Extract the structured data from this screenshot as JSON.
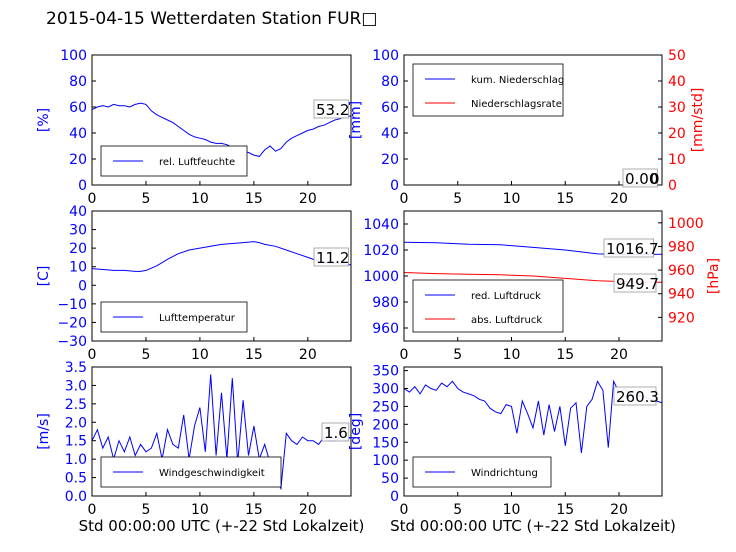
{
  "title": "2015-04-15 Wetterdaten Station FUR□",
  "colors": {
    "blue": "#0000ff",
    "red": "#ff0000",
    "black": "#000000"
  },
  "chart_data": [
    {
      "type": "line",
      "id": "humidity",
      "ylabel": "[%]",
      "xlim": [
        0,
        24
      ],
      "ylim": [
        0,
        100
      ],
      "xticks": [
        "0",
        "5",
        "10",
        "15",
        "20"
      ],
      "yticks": [
        "0",
        "20",
        "40",
        "60",
        "80",
        "100"
      ],
      "legend": [
        "rel. Luftfeuchte"
      ],
      "legend_loc": "lower-left",
      "current_value": "53.2",
      "series": [
        {
          "name": "rel. Luftfeuchte",
          "color": "#0000ff",
          "x": [
            0,
            0.5,
            1,
            1.5,
            2,
            2.5,
            3,
            3.5,
            4,
            4.5,
            5,
            5.5,
            6,
            6.5,
            7,
            7.5,
            8,
            8.5,
            9,
            9.5,
            10,
            10.5,
            11,
            11.5,
            12,
            12.5,
            13,
            13.5,
            14,
            14.5,
            15,
            15.5,
            16,
            16.5,
            17,
            17.5,
            18,
            18.5,
            19,
            19.5,
            20,
            20.5,
            21,
            21.5,
            22,
            22.5,
            23,
            23.5,
            24
          ],
          "y": [
            58,
            60,
            61,
            60,
            62,
            61,
            61,
            60,
            62,
            63,
            62,
            57,
            54,
            52,
            50,
            48,
            45,
            42,
            39,
            37,
            36,
            35,
            33,
            32,
            32,
            31,
            29,
            27,
            26,
            25,
            23,
            22,
            27,
            30,
            26,
            28,
            33,
            36,
            38,
            40,
            42,
            43,
            45,
            46,
            48,
            50,
            51,
            53,
            53
          ]
        }
      ]
    },
    {
      "type": "line",
      "id": "precip",
      "ylabel": "[mm]",
      "y2label": "[mm/std]",
      "xlim": [
        0,
        24
      ],
      "ylim": [
        0,
        100
      ],
      "y2lim": [
        0,
        50
      ],
      "xticks": [
        "0",
        "5",
        "10",
        "15",
        "20"
      ],
      "yticks": [
        "0",
        "20",
        "40",
        "60",
        "80",
        "100"
      ],
      "y2ticks": [
        "0",
        "10",
        "20",
        "30",
        "40",
        "50"
      ],
      "legend": [
        "kum. Niederschlag",
        "Niederschlagsrate"
      ],
      "legend_loc": "top-left",
      "current_value": "0.00",
      "current_value_overlap": "0",
      "series": [
        {
          "name": "kum. Niederschlag",
          "color": "#0000ff",
          "x": [
            0,
            24
          ],
          "y": [
            0,
            0
          ]
        },
        {
          "name": "Niederschlagsrate",
          "color": "#ff0000",
          "axis": "right",
          "x": [
            0,
            24
          ],
          "y": [
            0,
            0
          ]
        }
      ]
    },
    {
      "type": "line",
      "id": "temperature",
      "ylabel": "[C]",
      "xlim": [
        0,
        24
      ],
      "ylim": [
        -30,
        40
      ],
      "xticks": [
        "0",
        "5",
        "10",
        "15",
        "20"
      ],
      "yticks": [
        "−30",
        "−20",
        "−10",
        "0",
        "10",
        "20",
        "30",
        "40"
      ],
      "legend": [
        "Lufttemperatur"
      ],
      "legend_loc": "lower-left",
      "current_value": "11.2",
      "series": [
        {
          "name": "Lufttemperatur",
          "color": "#0000ff",
          "x": [
            0,
            1,
            2,
            3,
            4,
            4.5,
            5,
            6,
            7,
            8,
            9,
            10,
            11,
            12,
            13,
            14,
            15,
            15.5,
            16,
            17,
            18,
            19,
            20,
            21,
            22,
            23,
            24
          ],
          "y": [
            9,
            8.5,
            8,
            8,
            7.5,
            7.5,
            8,
            10.5,
            14,
            17,
            19,
            20,
            21,
            22,
            22.5,
            23,
            23.5,
            23,
            22,
            21,
            19,
            17,
            15,
            13,
            12,
            11.5,
            11
          ]
        }
      ]
    },
    {
      "type": "line",
      "id": "pressure",
      "ylabel": "[hPa]",
      "xlim": [
        0,
        24
      ],
      "ylim": [
        950,
        1050
      ],
      "y2lim": [
        900,
        1010
      ],
      "xticks": [
        "0",
        "5",
        "10",
        "15",
        "20"
      ],
      "yticks": [
        "960",
        "980",
        "1000",
        "1020",
        "1040"
      ],
      "y2ticks": [
        "920",
        "940",
        "960",
        "980",
        "1000"
      ],
      "legend": [
        "red. Luftdruck",
        "abs. Luftdruck"
      ],
      "legend_loc": "lower-left",
      "value_1": "1016.7",
      "value_2": "949.7",
      "series": [
        {
          "name": "red. Luftdruck",
          "color": "#0000ff",
          "x": [
            0,
            3,
            6,
            9,
            12,
            15,
            18,
            21,
            24
          ],
          "y": [
            1026,
            1025.5,
            1024.5,
            1024,
            1022,
            1020,
            1017,
            1016.5,
            1016.7
          ]
        },
        {
          "name": "abs. Luftdruck",
          "color": "#ff0000",
          "axis": "right",
          "x": [
            0,
            3,
            6,
            9,
            12,
            15,
            18,
            21,
            24
          ],
          "y": [
            958,
            957,
            956.5,
            956,
            955,
            953,
            951,
            950,
            949.7
          ]
        }
      ]
    },
    {
      "type": "line",
      "id": "wind-speed",
      "ylabel": "[m/s]",
      "xlabel": "Std 00:00:00 UTC (+-22 Std Lokalzeit)",
      "xlim": [
        0,
        24
      ],
      "ylim": [
        0,
        3.5
      ],
      "xticks": [
        "0",
        "5",
        "10",
        "15",
        "20"
      ],
      "yticks": [
        "0.0",
        "0.5",
        "1.0",
        "1.5",
        "2.0",
        "2.5",
        "3.0",
        "3.5"
      ],
      "legend": [
        "Windgeschwindigkeit"
      ],
      "legend_loc": "lower-left",
      "current_value": "1.6",
      "series": [
        {
          "name": "Windgeschwindigkeit",
          "color": "#0000ff",
          "x": [
            0,
            0.5,
            1,
            1.5,
            2,
            2.5,
            3,
            3.5,
            4,
            4.5,
            5,
            5.5,
            6,
            6.5,
            7,
            7.5,
            8,
            8.5,
            9,
            9.5,
            10,
            10.5,
            11,
            11.5,
            12,
            12.5,
            13,
            13.5,
            14,
            14.5,
            15,
            15.5,
            16,
            16.5,
            17,
            17.5,
            18,
            18.5,
            19,
            19.5,
            20,
            20.5,
            21,
            21.5,
            22,
            22.5,
            23,
            23.5,
            24
          ],
          "y": [
            1.5,
            1.8,
            1.3,
            1.6,
            1.0,
            1.5,
            1.2,
            1.6,
            1.1,
            1.4,
            1.2,
            1.3,
            1.7,
            1.0,
            1.8,
            1.4,
            1.3,
            2.2,
            1.0,
            1.9,
            2.4,
            1.2,
            3.3,
            1.1,
            2.8,
            1.0,
            3.2,
            0.9,
            2.6,
            1.1,
            1.9,
            1.0,
            1.4,
            0.9,
            0.5,
            0.2,
            1.7,
            1.5,
            1.4,
            1.6,
            1.5,
            1.5,
            1.4,
            1.6,
            1.5,
            1.5,
            1.6,
            1.5,
            1.6
          ]
        }
      ]
    },
    {
      "type": "line",
      "id": "wind-direction",
      "ylabel": "[deg]",
      "xlabel": "Std 00:00:00 UTC (+-22 Std Lokalzeit)",
      "xlim": [
        0,
        24
      ],
      "ylim": [
        0,
        360
      ],
      "xticks": [
        "0",
        "5",
        "10",
        "15",
        "20"
      ],
      "yticks": [
        "0",
        "50",
        "100",
        "150",
        "200",
        "250",
        "300",
        "350"
      ],
      "legend": [
        "Windrichtung"
      ],
      "legend_loc": "lower-left",
      "current_value": "260.3",
      "series": [
        {
          "name": "Windrichtung",
          "color": "#0000ff",
          "x": [
            0,
            0.5,
            1,
            1.5,
            2,
            2.5,
            3,
            3.5,
            4,
            4.5,
            5,
            5.5,
            6,
            6.5,
            7,
            7.5,
            8,
            8.5,
            9,
            9.5,
            10,
            10.5,
            11,
            11.5,
            12,
            12.5,
            13,
            13.5,
            14,
            14.5,
            15,
            15.5,
            16,
            16.5,
            17,
            17.5,
            18,
            18.5,
            19,
            19.5,
            20,
            20.5,
            21,
            21.5,
            22,
            22.5,
            23,
            23.5,
            24
          ],
          "y": [
            300,
            290,
            305,
            285,
            310,
            300,
            295,
            315,
            305,
            320,
            300,
            290,
            285,
            280,
            270,
            265,
            245,
            235,
            230,
            255,
            250,
            175,
            265,
            230,
            190,
            265,
            170,
            255,
            180,
            250,
            140,
            245,
            260,
            120,
            250,
            270,
            320,
            295,
            135,
            320,
            290,
            300,
            285,
            280,
            280,
            275,
            270,
            265,
            260
          ]
        }
      ]
    }
  ]
}
